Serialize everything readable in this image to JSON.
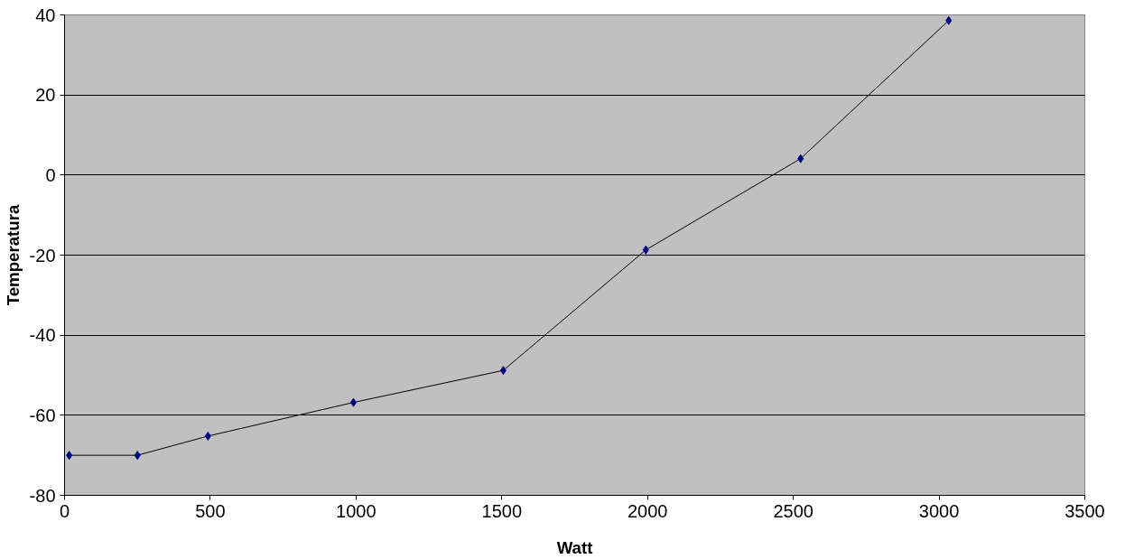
{
  "chart_data": {
    "type": "line",
    "xlabel": "Watt",
    "ylabel": "Temperatura",
    "x": [
      16,
      250,
      492,
      991,
      1505,
      1994,
      2525,
      3033
    ],
    "series": [
      {
        "color": "#000080",
        "values": [
          -70,
          -70,
          -65.2,
          -56.8,
          -48.8,
          -18.7,
          4.1,
          38.6
        ]
      }
    ],
    "xlim": [
      0,
      3500
    ],
    "xticks": [
      0,
      500,
      1000,
      1500,
      2000,
      2500,
      3000,
      3500
    ],
    "ylim": [
      -80,
      40
    ],
    "yticks": [
      -80,
      -60,
      -40,
      -20,
      0,
      20,
      40
    ],
    "grid": "y",
    "marker": "diamond",
    "line_style": "solid"
  }
}
